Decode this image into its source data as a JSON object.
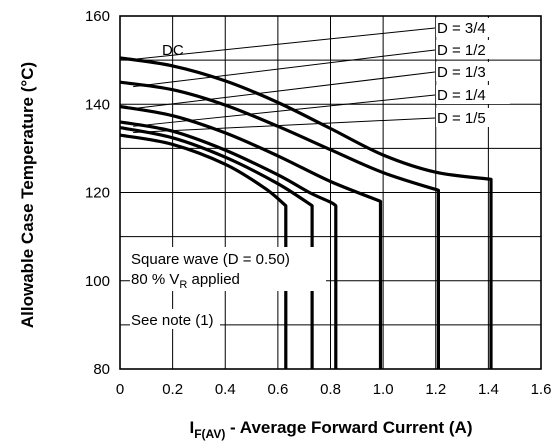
{
  "chart_data": {
    "type": "line",
    "xlabel_main": "I",
    "xlabel_sub": "F(AV)",
    "xlabel_rest": " - Average Forward Current (A)",
    "ylabel": "Allowable Case Temperature (°C)",
    "xlim": [
      0,
      1.6
    ],
    "ylim": [
      80,
      160
    ],
    "x_ticks": [
      "0",
      "0.2",
      "0.4",
      "0.6",
      "0.8",
      "1.0",
      "1.2",
      "1.4",
      "1.6"
    ],
    "y_ticks": [
      "80",
      "100",
      "120",
      "140",
      "160"
    ],
    "grid": true,
    "series": [
      {
        "name": "DC",
        "points": [
          [
            0,
            150.5
          ],
          [
            0.2,
            148.7
          ],
          [
            0.4,
            145.3
          ],
          [
            0.6,
            140.4
          ],
          [
            0.8,
            134.5
          ],
          [
            1.0,
            128.5
          ],
          [
            1.2,
            124.6
          ],
          [
            1.41,
            123
          ],
          [
            1.41,
            80
          ]
        ]
      },
      {
        "name": "D = 3/4",
        "points": [
          [
            0,
            145
          ],
          [
            0.2,
            143.3
          ],
          [
            0.4,
            139.8
          ],
          [
            0.6,
            135
          ],
          [
            0.8,
            129.7
          ],
          [
            1.0,
            124.5
          ],
          [
            1.21,
            120.5
          ],
          [
            1.21,
            80
          ]
        ]
      },
      {
        "name": "D = 1/2",
        "points": [
          [
            0,
            139.5
          ],
          [
            0.2,
            137.4
          ],
          [
            0.4,
            133.5
          ],
          [
            0.6,
            128.3
          ],
          [
            0.8,
            122.5
          ],
          [
            0.99,
            118
          ],
          [
            0.99,
            80
          ]
        ]
      },
      {
        "name": "D = 1/3",
        "points": [
          [
            0,
            136
          ],
          [
            0.2,
            133.9
          ],
          [
            0.4,
            129.6
          ],
          [
            0.6,
            124
          ],
          [
            0.72,
            120
          ],
          [
            0.8,
            117.8
          ],
          [
            0.82,
            117
          ],
          [
            0.82,
            80
          ]
        ]
      },
      {
        "name": "D = 1/4",
        "points": [
          [
            0,
            134.7
          ],
          [
            0.2,
            132.4
          ],
          [
            0.4,
            128
          ],
          [
            0.6,
            122
          ],
          [
            0.73,
            117
          ],
          [
            0.73,
            80
          ]
        ]
      },
      {
        "name": "D = 1/5",
        "points": [
          [
            0,
            133
          ],
          [
            0.2,
            130.9
          ],
          [
            0.4,
            126.4
          ],
          [
            0.55,
            121
          ],
          [
            0.63,
            117
          ],
          [
            0.63,
            80
          ]
        ]
      }
    ],
    "annotations": {
      "square_wave": "Square wave (D = 0.50)",
      "vr_prefix": "80 % V",
      "vr_sub": "R",
      "vr_suffix": " applied",
      "note": "See note (1)"
    }
  }
}
